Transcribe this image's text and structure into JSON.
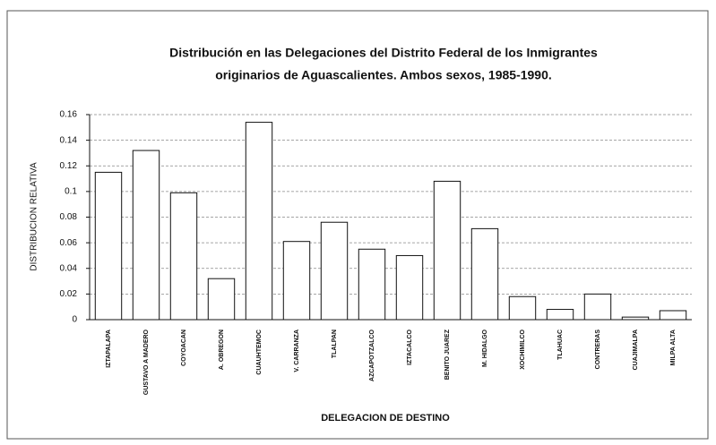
{
  "chart_data": {
    "type": "bar",
    "title": [
      "Distribución en las Delegaciones del Distrito Federal de los Inmigrantes",
      "originarios de Aguascalientes. Ambos sexos, 1985-1990."
    ],
    "x_label": "DELEGACION DE DESTINO",
    "y_label": "DISTRIBUCION RELATIVA",
    "categories": [
      "IZTAPALAPA",
      "GUSTAVO A MADERO",
      "COYOACAN",
      "A. OBREGON",
      "CUAUHTEMOC",
      "V. CARRANZA",
      "TLALPAN",
      "AZCAPOTZALCO",
      "IZTACALCO",
      "BENITO JUAREZ",
      "M. HIDALGO",
      "XOCHIMILCO",
      "TLAHUAC",
      "CONTRERAS",
      "CUAJIMALPA",
      "MILPA ALTA"
    ],
    "values": [
      0.115,
      0.132,
      0.099,
      0.032,
      0.154,
      0.061,
      0.076,
      0.055,
      0.05,
      0.108,
      0.071,
      0.018,
      0.008,
      0.02,
      0.002,
      0.007
    ],
    "color": "#ffffff",
    "ylim": [
      0,
      0.16
    ],
    "yticks": [
      0,
      0.02,
      0.04,
      0.06,
      0.08,
      0.1,
      0.12,
      0.14,
      0.16
    ],
    "grid": true
  }
}
